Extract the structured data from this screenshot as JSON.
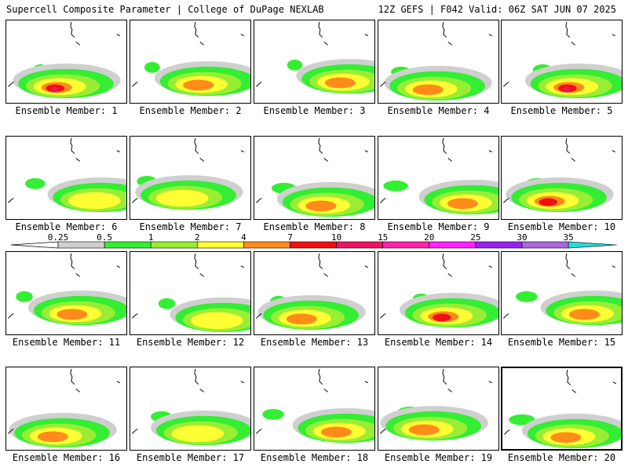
{
  "header": {
    "title_left": "Supercell Composite Parameter | College of DuPage NEXLAB",
    "title_right": "12Z GEFS | F042 Valid: 06Z SAT JUN 07 2025"
  },
  "colors": {
    "0.25": "#cfcfcf",
    "0.5": "#33ee33",
    "1": "#99ee33",
    "2": "#ffff33",
    "4": "#ff8c1a",
    "7": "#ee1111",
    "10": "#ee1166",
    "15": "#ff22aa",
    "20": "#ff22ff",
    "25": "#9922ee",
    "30": "#aa66dd",
    "35": "#22dddd"
  },
  "colorbar": {
    "labels": [
      "0.25",
      "0.5",
      "1",
      "2",
      "4",
      "7",
      "10",
      "15",
      "20",
      "25",
      "30",
      "35"
    ]
  },
  "panels": [
    {
      "label": "Ensemble Member: 1",
      "member": 1,
      "selected": false,
      "intensity": "high"
    },
    {
      "label": "Ensemble Member: 2",
      "member": 2,
      "selected": false,
      "intensity": "medium"
    },
    {
      "label": "Ensemble Member: 3",
      "member": 3,
      "selected": false,
      "intensity": "medium"
    },
    {
      "label": "Ensemble Member: 4",
      "member": 4,
      "selected": false,
      "intensity": "medium"
    },
    {
      "label": "Ensemble Member: 5",
      "member": 5,
      "selected": false,
      "intensity": "high"
    },
    {
      "label": "Ensemble Member: 6",
      "member": 6,
      "selected": false,
      "intensity": "low"
    },
    {
      "label": "Ensemble Member: 7",
      "member": 7,
      "selected": false,
      "intensity": "low"
    },
    {
      "label": "Ensemble Member: 8",
      "member": 8,
      "selected": false,
      "intensity": "medium"
    },
    {
      "label": "Ensemble Member: 9",
      "member": 9,
      "selected": false,
      "intensity": "medium"
    },
    {
      "label": "Ensemble Member: 10",
      "member": 10,
      "selected": false,
      "intensity": "high"
    },
    {
      "label": "Ensemble Member: 11",
      "member": 11,
      "selected": false,
      "intensity": "medium"
    },
    {
      "label": "Ensemble Member: 12",
      "member": 12,
      "selected": false,
      "intensity": "low"
    },
    {
      "label": "Ensemble Member: 13",
      "member": 13,
      "selected": false,
      "intensity": "medium"
    },
    {
      "label": "Ensemble Member: 14",
      "member": 14,
      "selected": false,
      "intensity": "high"
    },
    {
      "label": "Ensemble Member: 15",
      "member": 15,
      "selected": false,
      "intensity": "medium"
    },
    {
      "label": "Ensemble Member: 16",
      "member": 16,
      "selected": false,
      "intensity": "medium"
    },
    {
      "label": "Ensemble Member: 17",
      "member": 17,
      "selected": false,
      "intensity": "low"
    },
    {
      "label": "Ensemble Member: 18",
      "member": 18,
      "selected": false,
      "intensity": "medium"
    },
    {
      "label": "Ensemble Member: 19",
      "member": 19,
      "selected": false,
      "intensity": "medium"
    },
    {
      "label": "Ensemble Member: 20",
      "member": 20,
      "selected": true,
      "intensity": "medium"
    }
  ]
}
